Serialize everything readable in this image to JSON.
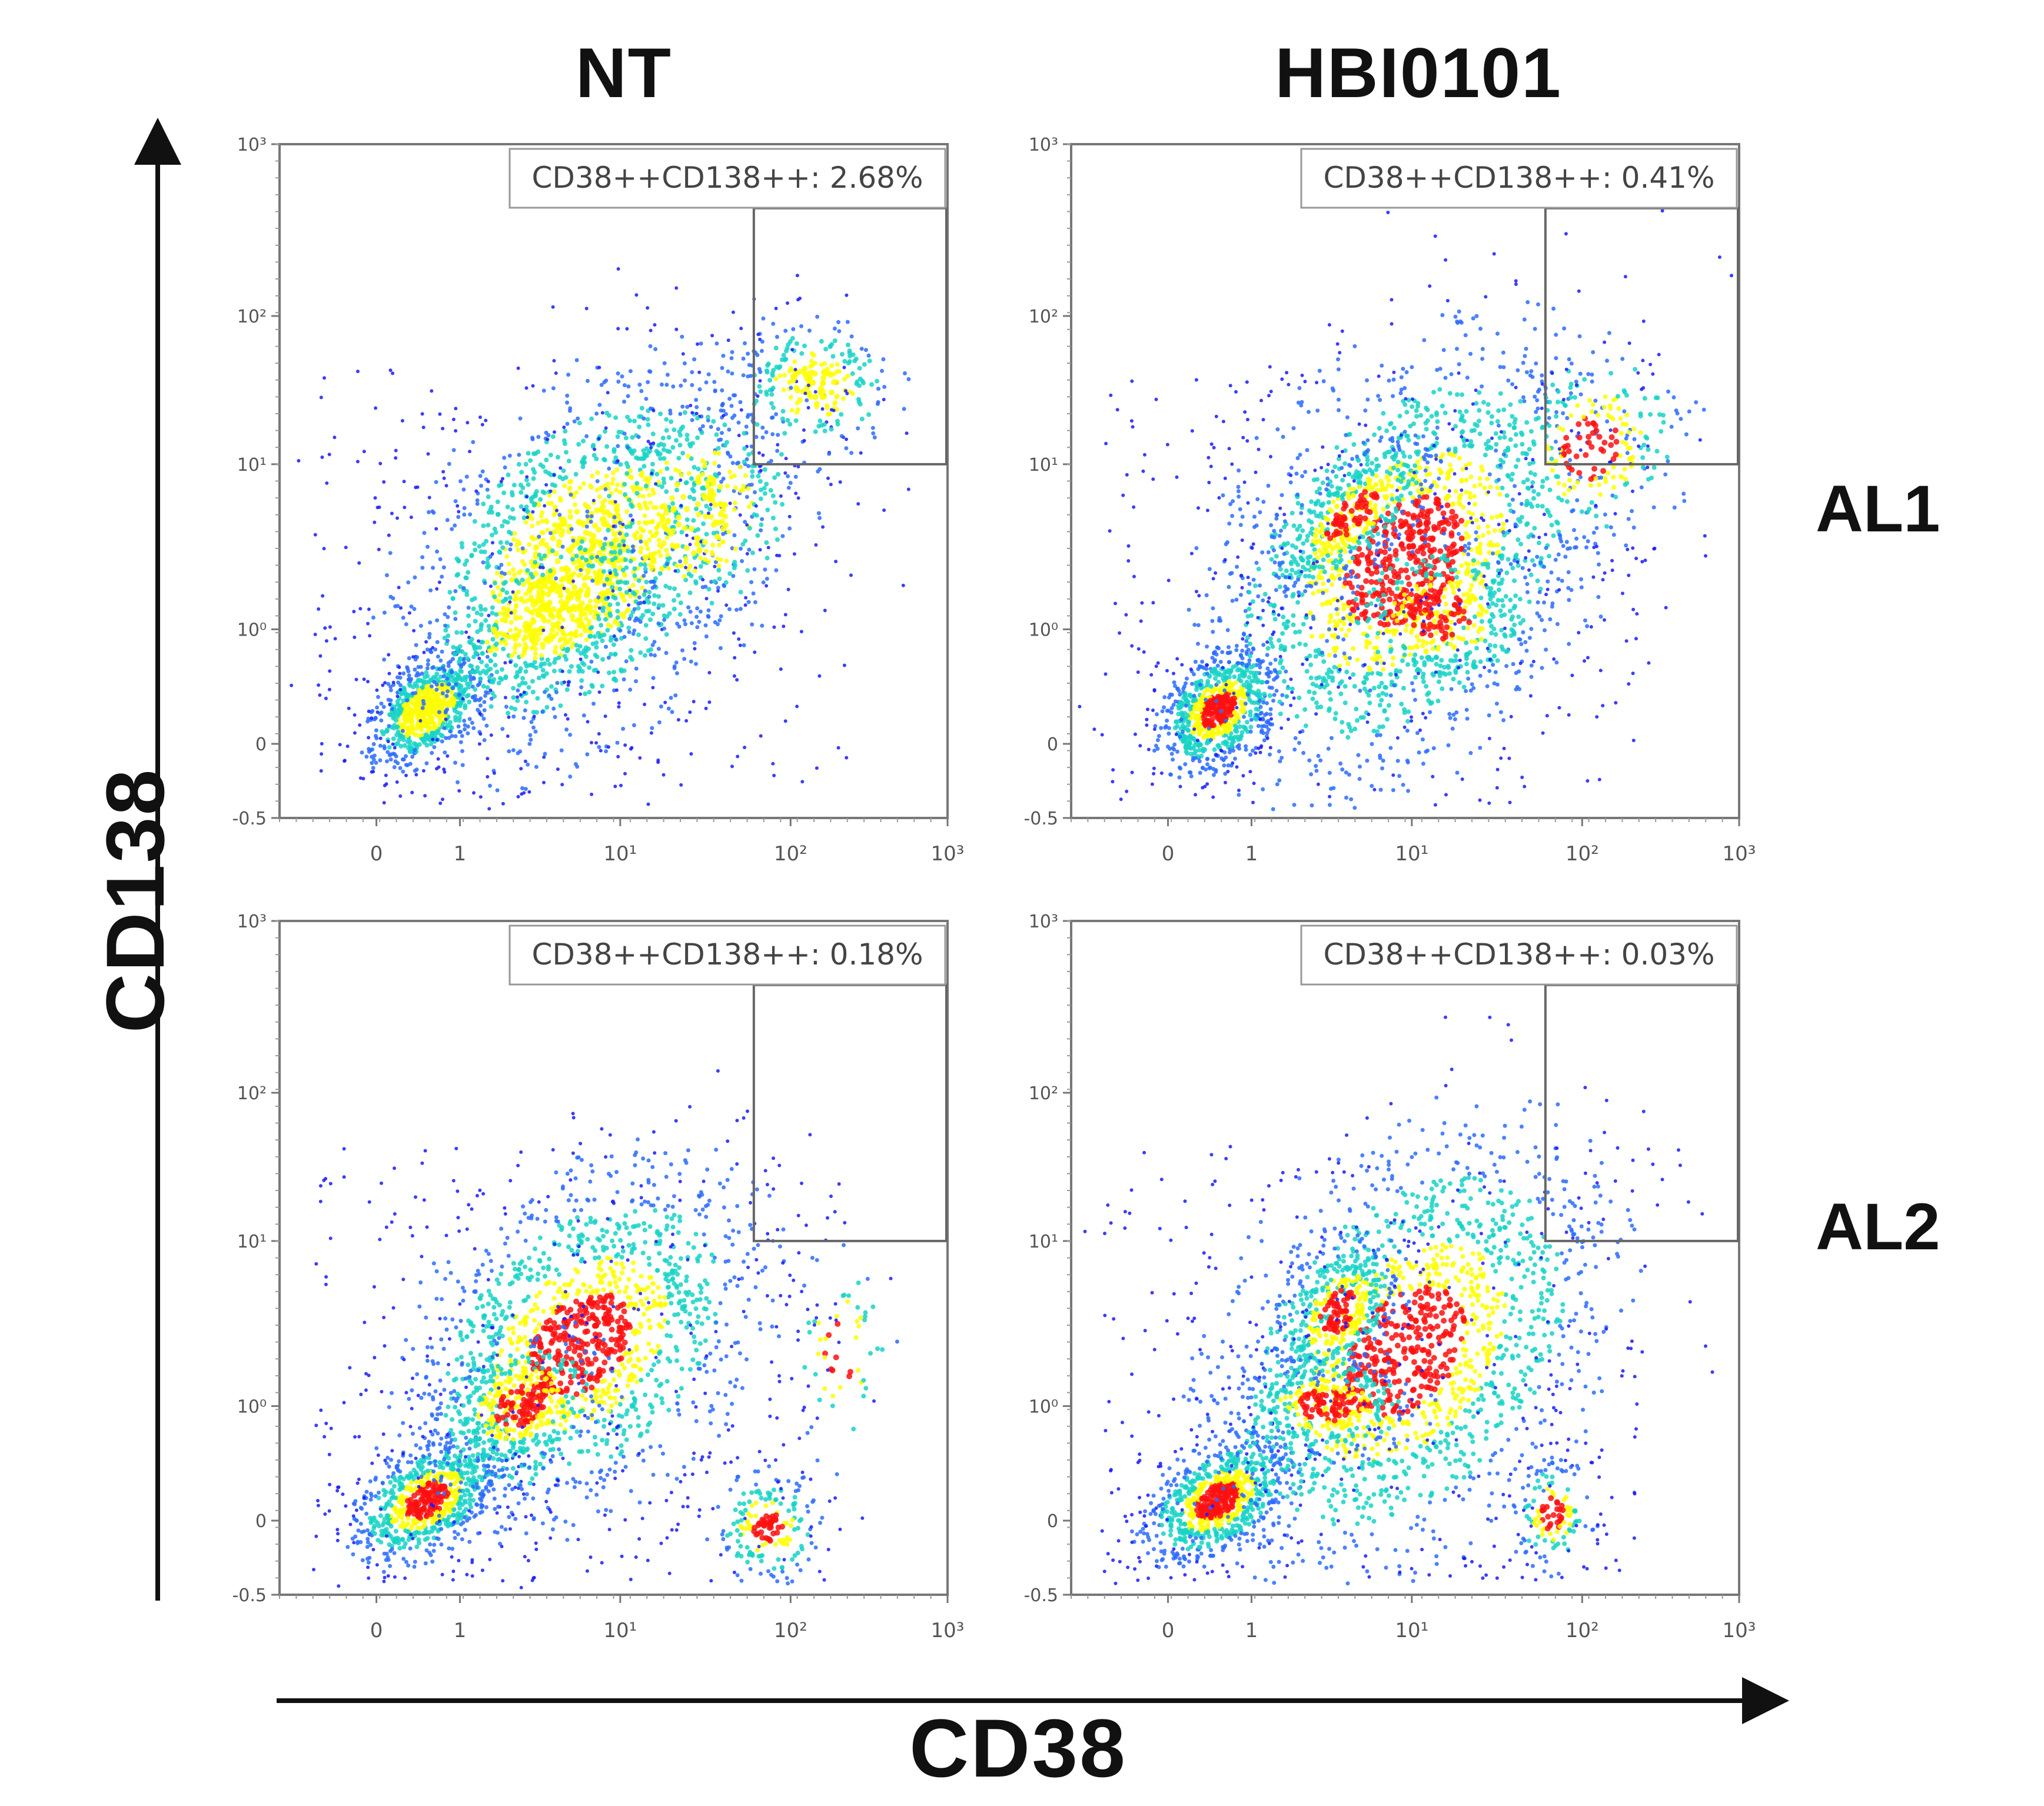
{
  "figure": {
    "column_titles": [
      "NT",
      "HBI0101"
    ],
    "row_titles": [
      "AL1",
      "AL2"
    ],
    "x_axis_title": "CD38",
    "y_axis_title": "CD138"
  },
  "colors": {
    "density_low": "#1a1aff",
    "density_mid": "#18d3c6",
    "density_high": "#ffff00",
    "density_peak": "#ff1010",
    "axis": "#777777",
    "gate": "#666666"
  },
  "chart_data": [
    {
      "type": "scatter",
      "panel": "NT-AL1",
      "gate_label": "CD38++CD138++: 2.68%",
      "gate_percent": 2.68,
      "xlabel": "",
      "ylabel": "",
      "x_tick_labels": [
        "0",
        "1",
        "10¹",
        "10²",
        "10³"
      ],
      "y_tick_labels": [
        "-0.5",
        "0",
        "10⁰",
        "10¹",
        "10²",
        "10³"
      ],
      "x_scale": "biexponential",
      "y_scale": "biexponential",
      "gate_x_range": [
        50,
        1000
      ],
      "gate_y_range": [
        10,
        1000
      ]
    },
    {
      "type": "scatter",
      "panel": "HBI0101-AL1",
      "gate_label": "CD38++CD138++: 0.41%",
      "gate_percent": 0.41,
      "xlabel": "",
      "ylabel": "",
      "x_tick_labels": [
        "0",
        "1",
        "10¹",
        "10²",
        "10³"
      ],
      "y_tick_labels": [
        "-0.5",
        "0",
        "10⁰",
        "10¹",
        "10²",
        "10³"
      ],
      "x_scale": "biexponential",
      "y_scale": "biexponential",
      "gate_x_range": [
        50,
        1000
      ],
      "gate_y_range": [
        10,
        1000
      ]
    },
    {
      "type": "scatter",
      "panel": "NT-AL2",
      "gate_label": "CD38++CD138++: 0.18%",
      "gate_percent": 0.18,
      "xlabel": "",
      "ylabel": "",
      "x_tick_labels": [
        "0",
        "1",
        "10¹",
        "10²",
        "10³"
      ],
      "y_tick_labels": [
        "-0.5",
        "0",
        "10⁰",
        "10¹",
        "10²",
        "10³"
      ],
      "x_scale": "biexponential",
      "y_scale": "biexponential",
      "gate_x_range": [
        50,
        1000
      ],
      "gate_y_range": [
        10,
        1000
      ]
    },
    {
      "type": "scatter",
      "panel": "HBI0101-AL2",
      "gate_label": "CD38++CD138++: 0.03%",
      "gate_percent": 0.03,
      "xlabel": "",
      "ylabel": "",
      "x_tick_labels": [
        "0",
        "1",
        "10¹",
        "10²",
        "10³"
      ],
      "y_tick_labels": [
        "-0.5",
        "0",
        "10⁰",
        "10¹",
        "10²",
        "10³"
      ],
      "x_scale": "biexponential",
      "y_scale": "biexponential",
      "gate_x_range": [
        50,
        1000
      ],
      "gate_y_range": [
        10,
        1000
      ]
    }
  ]
}
